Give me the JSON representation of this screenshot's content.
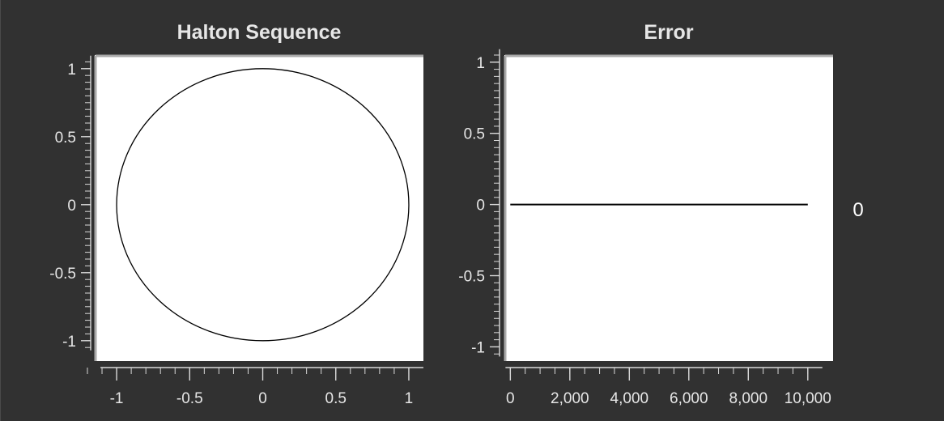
{
  "readout": {
    "value": "0"
  },
  "chart_data": [
    {
      "type": "line",
      "title": "Halton Sequence",
      "xlabel": "",
      "ylabel": "",
      "xlim": [
        -1.15,
        1.1
      ],
      "ylim": [
        -1.15,
        1.1
      ],
      "x_ticks": [
        -1,
        -0.5,
        0,
        0.5,
        1
      ],
      "x_tick_labels": [
        "-1",
        "-0.5",
        "0",
        "0.5",
        "1"
      ],
      "y_ticks": [
        1,
        0.5,
        0,
        -0.5,
        -1
      ],
      "y_tick_labels": [
        "1",
        "0.5",
        "0",
        "-0.5",
        "-1"
      ],
      "grid": false,
      "series": [
        {
          "shape": "circle",
          "center": [
            0,
            0
          ],
          "radius": 1,
          "color": "#000000"
        }
      ]
    },
    {
      "type": "line",
      "title": "Error",
      "xlabel": "",
      "ylabel": "",
      "xlim": [
        -200,
        10850
      ],
      "ylim": [
        -1.1,
        1.05
      ],
      "x_ticks": [
        0,
        2000,
        4000,
        6000,
        8000,
        10000
      ],
      "x_tick_labels": [
        "0",
        "2,000",
        "4,000",
        "6,000",
        "8,000",
        "10,000"
      ],
      "y_ticks": [
        1,
        0.5,
        0,
        -0.5,
        -1
      ],
      "y_tick_labels": [
        "1",
        "0.5",
        "0",
        "-0.5",
        "-1"
      ],
      "grid": false,
      "series": [
        {
          "x": [
            0,
            10000
          ],
          "y": [
            0,
            0
          ],
          "color": "#000000"
        }
      ]
    }
  ]
}
